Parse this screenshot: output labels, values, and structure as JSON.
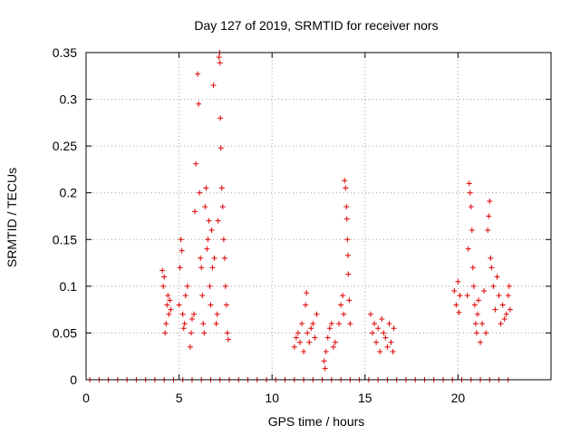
{
  "chart_data": {
    "type": "scatter",
    "title": "Day 127 of 2019, SRMTID for receiver nors",
    "xlabel": "GPS time / hours",
    "ylabel": "SRMTID / TECUs",
    "xlim": [
      0,
      25
    ],
    "ylim": [
      0,
      0.35
    ],
    "grid": true,
    "marker": "+",
    "color": "#e00000",
    "x_ticks": [
      0,
      5,
      10,
      15,
      20
    ],
    "x_tick_labels": [
      "0",
      "5",
      "10",
      "15",
      "20"
    ],
    "y_ticks": [
      0,
      0.05,
      0.1,
      0.15,
      0.2,
      0.25,
      0.3,
      0.35
    ],
    "y_tick_labels": [
      "0",
      "0.05",
      "0.1",
      "0.15",
      "0.2",
      "0.25",
      "0.3",
      "0.35"
    ],
    "series": [
      {
        "name": "SRMTID",
        "points": [
          [
            4.1,
            0.117
          ],
          [
            4.15,
            0.1
          ],
          [
            4.2,
            0.11
          ],
          [
            4.25,
            0.05
          ],
          [
            4.3,
            0.06
          ],
          [
            4.35,
            0.08
          ],
          [
            4.4,
            0.09
          ],
          [
            4.45,
            0.07
          ],
          [
            4.5,
            0.085
          ],
          [
            4.55,
            0.075
          ],
          [
            5.0,
            0.08
          ],
          [
            5.05,
            0.12
          ],
          [
            5.1,
            0.15
          ],
          [
            5.15,
            0.138
          ],
          [
            5.2,
            0.07
          ],
          [
            5.25,
            0.055
          ],
          [
            5.3,
            0.06
          ],
          [
            5.35,
            0.09
          ],
          [
            5.45,
            0.1
          ],
          [
            5.6,
            0.035
          ],
          [
            5.65,
            0.05
          ],
          [
            5.7,
            0.065
          ],
          [
            5.8,
            0.07
          ],
          [
            5.85,
            0.18
          ],
          [
            5.9,
            0.231
          ],
          [
            6.0,
            0.327
          ],
          [
            6.05,
            0.295
          ],
          [
            6.1,
            0.2
          ],
          [
            6.15,
            0.13
          ],
          [
            6.2,
            0.12
          ],
          [
            6.25,
            0.09
          ],
          [
            6.3,
            0.06
          ],
          [
            6.35,
            0.05
          ],
          [
            6.4,
            0.185
          ],
          [
            6.45,
            0.205
          ],
          [
            6.5,
            0.14
          ],
          [
            6.55,
            0.15
          ],
          [
            6.6,
            0.17
          ],
          [
            6.65,
            0.1
          ],
          [
            6.7,
            0.08
          ],
          [
            6.75,
            0.16
          ],
          [
            6.8,
            0.12
          ],
          [
            6.85,
            0.315
          ],
          [
            6.9,
            0.13
          ],
          [
            7.0,
            0.06
          ],
          [
            7.05,
            0.07
          ],
          [
            7.1,
            0.17
          ],
          [
            7.15,
            0.345
          ],
          [
            7.18,
            0.35
          ],
          [
            7.2,
            0.339
          ],
          [
            7.22,
            0.28
          ],
          [
            7.25,
            0.248
          ],
          [
            7.3,
            0.205
          ],
          [
            7.35,
            0.185
          ],
          [
            7.4,
            0.15
          ],
          [
            7.45,
            0.13
          ],
          [
            7.5,
            0.1
          ],
          [
            7.55,
            0.08
          ],
          [
            7.6,
            0.05
          ],
          [
            7.65,
            0.043
          ],
          [
            11.2,
            0.035
          ],
          [
            11.3,
            0.045
          ],
          [
            11.4,
            0.05
          ],
          [
            11.5,
            0.04
          ],
          [
            11.6,
            0.06
          ],
          [
            11.7,
            0.03
          ],
          [
            11.8,
            0.08
          ],
          [
            11.85,
            0.093
          ],
          [
            11.9,
            0.05
          ],
          [
            12.0,
            0.04
          ],
          [
            12.1,
            0.055
          ],
          [
            12.2,
            0.06
          ],
          [
            12.3,
            0.045
          ],
          [
            12.4,
            0.07
          ],
          [
            12.8,
            0.02
          ],
          [
            12.85,
            0.012
          ],
          [
            12.9,
            0.03
          ],
          [
            13.0,
            0.045
          ],
          [
            13.1,
            0.055
          ],
          [
            13.2,
            0.06
          ],
          [
            13.3,
            0.035
          ],
          [
            13.4,
            0.04
          ],
          [
            13.6,
            0.06
          ],
          [
            13.7,
            0.08
          ],
          [
            13.8,
            0.09
          ],
          [
            13.85,
            0.07
          ],
          [
            13.9,
            0.213
          ],
          [
            13.95,
            0.205
          ],
          [
            14.0,
            0.185
          ],
          [
            14.02,
            0.172
          ],
          [
            14.05,
            0.15
          ],
          [
            14.08,
            0.133
          ],
          [
            14.1,
            0.113
          ],
          [
            14.15,
            0.085
          ],
          [
            14.2,
            0.06
          ],
          [
            15.3,
            0.07
          ],
          [
            15.4,
            0.05
          ],
          [
            15.5,
            0.06
          ],
          [
            15.6,
            0.04
          ],
          [
            15.7,
            0.055
          ],
          [
            15.8,
            0.03
          ],
          [
            15.9,
            0.065
          ],
          [
            16.0,
            0.05
          ],
          [
            16.1,
            0.045
          ],
          [
            16.2,
            0.035
          ],
          [
            16.3,
            0.06
          ],
          [
            16.4,
            0.04
          ],
          [
            16.5,
            0.03
          ],
          [
            16.55,
            0.055
          ],
          [
            19.8,
            0.095
          ],
          [
            19.9,
            0.08
          ],
          [
            20.0,
            0.105
          ],
          [
            20.05,
            0.072
          ],
          [
            20.1,
            0.09
          ],
          [
            20.5,
            0.09
          ],
          [
            20.55,
            0.14
          ],
          [
            20.6,
            0.21
          ],
          [
            20.65,
            0.2
          ],
          [
            20.7,
            0.185
          ],
          [
            20.75,
            0.16
          ],
          [
            20.8,
            0.12
          ],
          [
            20.85,
            0.1
          ],
          [
            20.9,
            0.08
          ],
          [
            20.95,
            0.06
          ],
          [
            21.0,
            0.05
          ],
          [
            21.05,
            0.07
          ],
          [
            21.1,
            0.085
          ],
          [
            21.2,
            0.04
          ],
          [
            21.3,
            0.06
          ],
          [
            21.4,
            0.095
          ],
          [
            21.5,
            0.05
          ],
          [
            21.6,
            0.16
          ],
          [
            21.65,
            0.175
          ],
          [
            21.7,
            0.191
          ],
          [
            21.75,
            0.13
          ],
          [
            21.8,
            0.12
          ],
          [
            21.9,
            0.1
          ],
          [
            22.0,
            0.075
          ],
          [
            22.1,
            0.11
          ],
          [
            22.2,
            0.09
          ],
          [
            22.3,
            0.06
          ],
          [
            22.4,
            0.08
          ],
          [
            22.5,
            0.065
          ],
          [
            22.6,
            0.07
          ],
          [
            22.7,
            0.09
          ],
          [
            22.75,
            0.1
          ],
          [
            22.8,
            0.075
          ],
          [
            0.2,
            0
          ],
          [
            0.7,
            0
          ],
          [
            1.2,
            0
          ],
          [
            1.7,
            0
          ],
          [
            2.2,
            0
          ],
          [
            2.7,
            0
          ],
          [
            3.2,
            0
          ],
          [
            3.7,
            0
          ],
          [
            4.2,
            0
          ],
          [
            4.7,
            0
          ],
          [
            5.2,
            0
          ],
          [
            5.7,
            0
          ],
          [
            6.2,
            0
          ],
          [
            6.7,
            0
          ],
          [
            7.2,
            0
          ],
          [
            7.7,
            0
          ],
          [
            8.2,
            0
          ],
          [
            8.7,
            0
          ],
          [
            9.2,
            0
          ],
          [
            9.7,
            0
          ],
          [
            10.2,
            0
          ],
          [
            10.7,
            0
          ],
          [
            11.2,
            0
          ],
          [
            11.7,
            0
          ],
          [
            12.2,
            0
          ],
          [
            12.7,
            0
          ],
          [
            13.2,
            0
          ],
          [
            13.7,
            0
          ],
          [
            14.2,
            0
          ],
          [
            14.7,
            0
          ],
          [
            15.2,
            0
          ],
          [
            15.7,
            0
          ],
          [
            16.2,
            0
          ],
          [
            16.7,
            0
          ],
          [
            17.2,
            0
          ],
          [
            17.7,
            0
          ],
          [
            18.2,
            0
          ],
          [
            18.7,
            0
          ],
          [
            19.2,
            0
          ],
          [
            19.7,
            0
          ],
          [
            20.2,
            0
          ],
          [
            20.7,
            0
          ],
          [
            21.2,
            0
          ],
          [
            21.7,
            0
          ],
          [
            22.2,
            0
          ],
          [
            22.7,
            0
          ]
        ]
      }
    ]
  }
}
